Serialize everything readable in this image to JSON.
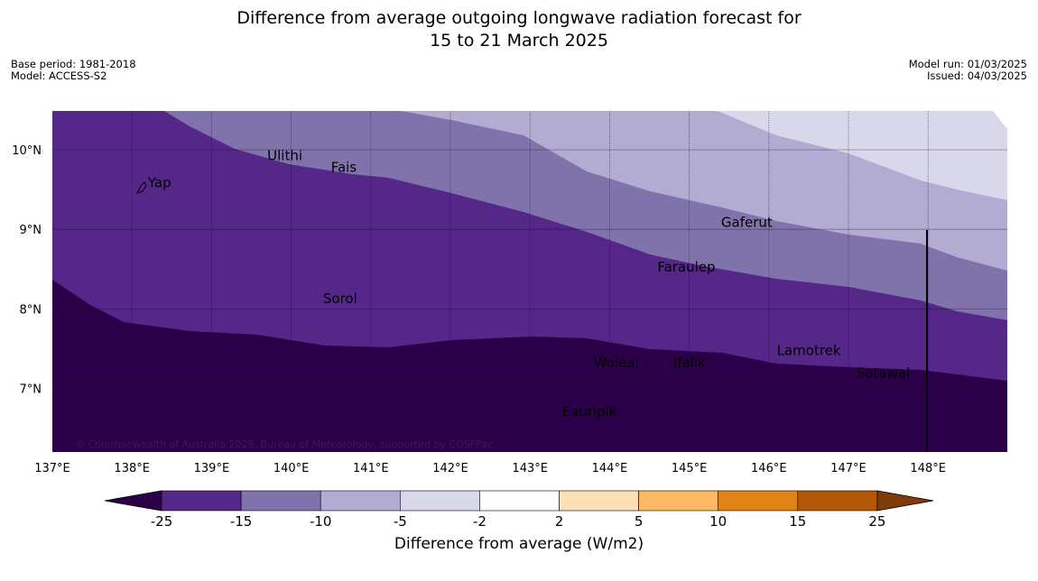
{
  "title_line1": "Difference from average outgoing longwave radiation forecast for",
  "title_line2": "15 to 21 March 2025",
  "meta_left": {
    "base_period": "Base period: 1981-2018",
    "model": "Model: ACCESS-S2"
  },
  "meta_right": {
    "model_run": "Model run: 01/03/2025",
    "issued": "Issued: 04/03/2025"
  },
  "map": {
    "lon_range": [
      137,
      149
    ],
    "lat_range": [
      6.2,
      10.5
    ],
    "lon_ticks": [
      "137°E",
      "138°E",
      "139°E",
      "140°E",
      "141°E",
      "142°E",
      "143°E",
      "144°E",
      "145°E",
      "146°E",
      "147°E",
      "148°E"
    ],
    "lat_ticks": [
      "7°N",
      "8°N",
      "9°N",
      "10°N"
    ],
    "copyright": "© Commonwealth of Australia 2025, Bureau of Meteorology, supported by COSPPac",
    "places": [
      {
        "name": "Yap",
        "lon": 138.2,
        "lat": 9.53
      },
      {
        "name": "Ulithi",
        "lon": 139.7,
        "lat": 9.87
      },
      {
        "name": "Fais",
        "lon": 140.5,
        "lat": 9.72
      },
      {
        "name": "Sorol",
        "lon": 140.4,
        "lat": 8.07
      },
      {
        "name": "Gaferut",
        "lon": 145.4,
        "lat": 9.03
      },
      {
        "name": "Faraulep",
        "lon": 144.6,
        "lat": 8.47
      },
      {
        "name": "Lamotrek",
        "lon": 146.1,
        "lat": 7.42
      },
      {
        "name": "Woleai",
        "lon": 143.8,
        "lat": 7.27
      },
      {
        "name": "Ifalik",
        "lon": 144.8,
        "lat": 7.27
      },
      {
        "name": "Satawal",
        "lon": 147.1,
        "lat": 7.14
      },
      {
        "name": "Eauripik",
        "lon": 143.4,
        "lat": 6.65
      }
    ],
    "field_colors": [
      "#2c0048",
      "#542789",
      "#8073ab",
      "#b2abd2",
      "#d8d8ea"
    ]
  },
  "colorbar": {
    "label": "Difference from average (W/m2)",
    "ticks": [
      "-25",
      "-15",
      "-10",
      "-5",
      "-2",
      "2",
      "5",
      "10",
      "15",
      "25"
    ],
    "under_color": "#2c0048",
    "over_color": "#7f3b08",
    "colors": [
      "#542789",
      "#8073ab",
      "#b2abd2",
      "#d8d8ea",
      "#ffffff",
      "#fde0b6",
      "#fdb863",
      "#e08214",
      "#b35806"
    ]
  }
}
